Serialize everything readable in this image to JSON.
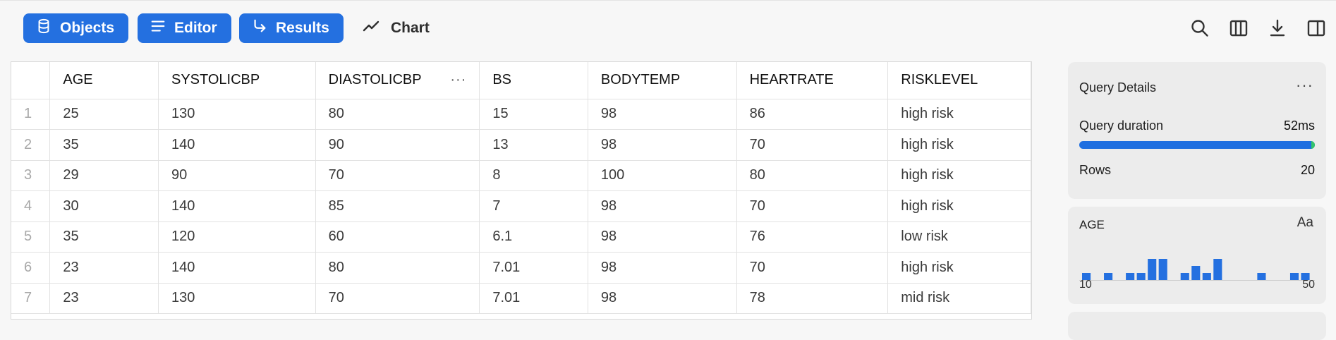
{
  "toolbar": {
    "objects_label": "Objects",
    "editor_label": "Editor",
    "results_label": "Results",
    "chart_label": "Chart",
    "icons": [
      "search-icon",
      "columns-icon",
      "download-icon",
      "split-panel-icon"
    ]
  },
  "colors": {
    "accent": "#2470e0",
    "success": "#35c46b"
  },
  "table": {
    "headers": [
      "AGE",
      "SYSTOLICBP",
      "DIASTOLICBP",
      "BS",
      "BODYTEMP",
      "HEARTRATE",
      "RISKLEVEL"
    ],
    "rows": [
      {
        "n": "1",
        "cells": [
          "25",
          "130",
          "80",
          "15",
          "98",
          "86",
          "high risk"
        ]
      },
      {
        "n": "2",
        "cells": [
          "35",
          "140",
          "90",
          "13",
          "98",
          "70",
          "high risk"
        ]
      },
      {
        "n": "3",
        "cells": [
          "29",
          "90",
          "70",
          "8",
          "100",
          "80",
          "high risk"
        ]
      },
      {
        "n": "4",
        "cells": [
          "30",
          "140",
          "85",
          "7",
          "98",
          "70",
          "high risk"
        ]
      },
      {
        "n": "5",
        "cells": [
          "35",
          "120",
          "60",
          "6.1",
          "98",
          "76",
          "low risk"
        ]
      },
      {
        "n": "6",
        "cells": [
          "23",
          "140",
          "80",
          "7.01",
          "98",
          "70",
          "high risk"
        ]
      },
      {
        "n": "7",
        "cells": [
          "23",
          "130",
          "70",
          "7.01",
          "98",
          "78",
          "mid risk"
        ]
      }
    ]
  },
  "query_details": {
    "title": "Query Details",
    "duration_label": "Query duration",
    "duration_value": "52ms",
    "rows_label": "Rows",
    "rows_value": "20"
  },
  "column_stats": {
    "name": "AGE",
    "type_badge": "Aa",
    "min_label": "10",
    "max_label": "50",
    "histogram": [
      1,
      0,
      1,
      0,
      1,
      1,
      3,
      3,
      0,
      1,
      2,
      1,
      3,
      0,
      0,
      0,
      1,
      0,
      0,
      1,
      1
    ]
  }
}
